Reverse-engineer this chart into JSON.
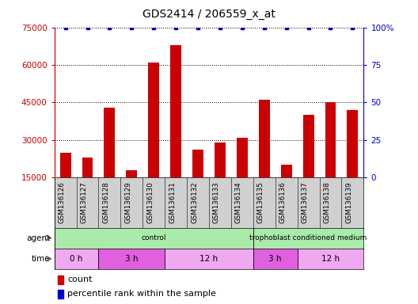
{
  "title": "GDS2414 / 206559_x_at",
  "samples": [
    "GSM136126",
    "GSM136127",
    "GSM136128",
    "GSM136129",
    "GSM136130",
    "GSM136131",
    "GSM136132",
    "GSM136133",
    "GSM136134",
    "GSM136135",
    "GSM136136",
    "GSM136137",
    "GSM136138",
    "GSM136139"
  ],
  "counts": [
    25000,
    23000,
    43000,
    18000,
    61000,
    68000,
    26000,
    29000,
    31000,
    46000,
    20000,
    40000,
    45000,
    42000
  ],
  "percentile_ranks": [
    100,
    100,
    100,
    100,
    100,
    100,
    100,
    100,
    100,
    100,
    100,
    100,
    100,
    100
  ],
  "bar_color": "#cc0000",
  "dot_color": "#0000cc",
  "ylim_left": [
    15000,
    75000
  ],
  "yticks_left": [
    15000,
    30000,
    45000,
    60000,
    75000
  ],
  "ylim_right": [
    0,
    100
  ],
  "yticks_right": [
    0,
    25,
    50,
    75,
    100
  ],
  "yticklabels_right": [
    "0",
    "25",
    "50",
    "75",
    "100%"
  ],
  "agent_segments": [
    {
      "text": "control",
      "start": 0,
      "end": 9,
      "color": "#aaeaaa"
    },
    {
      "text": "trophoblast conditioned medium",
      "start": 9,
      "end": 14,
      "color": "#aaeaaa"
    }
  ],
  "time_segments": [
    {
      "text": "0 h",
      "start": 0,
      "end": 2,
      "color": "#f0a8f0"
    },
    {
      "text": "3 h",
      "start": 2,
      "end": 5,
      "color": "#e060e0"
    },
    {
      "text": "12 h",
      "start": 5,
      "end": 9,
      "color": "#f0a8f0"
    },
    {
      "text": "3 h",
      "start": 9,
      "end": 11,
      "color": "#e060e0"
    },
    {
      "text": "12 h",
      "start": 11,
      "end": 14,
      "color": "#f0a8f0"
    }
  ],
  "sample_bg": "#d0d0d0",
  "background_color": "#ffffff"
}
